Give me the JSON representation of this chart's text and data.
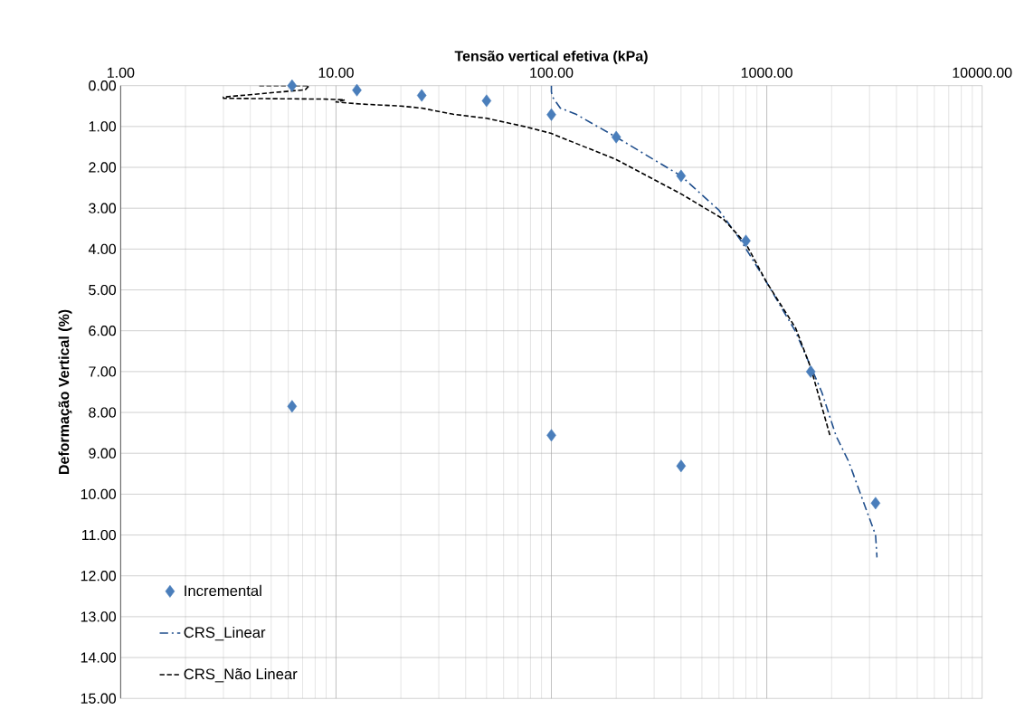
{
  "chart_data": {
    "type": "scatter",
    "xlabel": "Tensão vertical efetiva (kPa)",
    "ylabel": "Deformação Vertical (%)",
    "log": "x",
    "grid": true,
    "legend": "bottom left",
    "xlim": [
      1,
      10000
    ],
    "ylim": [
      15,
      0
    ],
    "xticks": [
      {
        "value": 1,
        "label": "1.00"
      },
      {
        "value": 10,
        "label": "10.00"
      },
      {
        "value": 100,
        "label": "100.00"
      },
      {
        "value": 1000,
        "label": "1000.00"
      },
      {
        "value": 10000,
        "label": "10000.00"
      }
    ],
    "yticks": [
      {
        "value": 0,
        "label": "0.00"
      },
      {
        "value": 1,
        "label": "1.00"
      },
      {
        "value": 2,
        "label": "2.00"
      },
      {
        "value": 3,
        "label": "3.00"
      },
      {
        "value": 4,
        "label": "4.00"
      },
      {
        "value": 5,
        "label": "5.00"
      },
      {
        "value": 6,
        "label": "6.00"
      },
      {
        "value": 7,
        "label": "7.00"
      },
      {
        "value": 8,
        "label": "8.00"
      },
      {
        "value": 9,
        "label": "9.00"
      },
      {
        "value": 10,
        "label": "10.00"
      },
      {
        "value": 11,
        "label": "11.00"
      },
      {
        "value": 12,
        "label": "12.00"
      },
      {
        "value": 13,
        "label": "13.00"
      },
      {
        "value": 14,
        "label": "14.00"
      },
      {
        "value": 15,
        "label": "15.00"
      }
    ],
    "series": [
      {
        "name": "Incremental",
        "marker": "diamond",
        "color": "#4a7ebb",
        "x": [
          6.25,
          12.5,
          25,
          50,
          100,
          200,
          400,
          800,
          1600,
          3200,
          400,
          100,
          6.25
        ],
        "values": [
          0.0,
          0.11,
          0.24,
          0.37,
          0.71,
          1.26,
          2.21,
          3.8,
          7.0,
          10.22,
          9.31,
          8.56,
          7.85
        ]
      },
      {
        "name": "CRS_Linear",
        "type": "line",
        "marker": "none",
        "line_style": "dashdot",
        "color": "#1f4e8c",
        "x": [
          100,
          100,
          101,
          110,
          130,
          200,
          400,
          600,
          760,
          1000,
          1360,
          1800,
          2100,
          2400,
          3200,
          3250
        ],
        "values": [
          0.0,
          0.15,
          0.27,
          0.55,
          0.7,
          1.26,
          2.21,
          3.05,
          3.8,
          4.82,
          6.02,
          7.5,
          8.58,
          9.2,
          11.0,
          11.55
        ]
      },
      {
        "name": "CRS_Não Linear",
        "type": "line",
        "marker": "none",
        "line_style": "dashed",
        "color": "#000000",
        "x": [
          4.4,
          7.5,
          7.2,
          3.0,
          3.0,
          9,
          11,
          10,
          13,
          20,
          25,
          35,
          50,
          75,
          100,
          200,
          400,
          630,
          800,
          1000,
          1360,
          1600,
          1970
        ],
        "values": [
          0.0,
          0.0,
          0.1,
          0.28,
          0.31,
          0.33,
          0.35,
          0.4,
          0.45,
          0.5,
          0.55,
          0.7,
          0.8,
          1.0,
          1.17,
          1.81,
          2.65,
          3.27,
          3.87,
          4.82,
          5.93,
          6.9,
          8.58
        ]
      }
    ]
  }
}
